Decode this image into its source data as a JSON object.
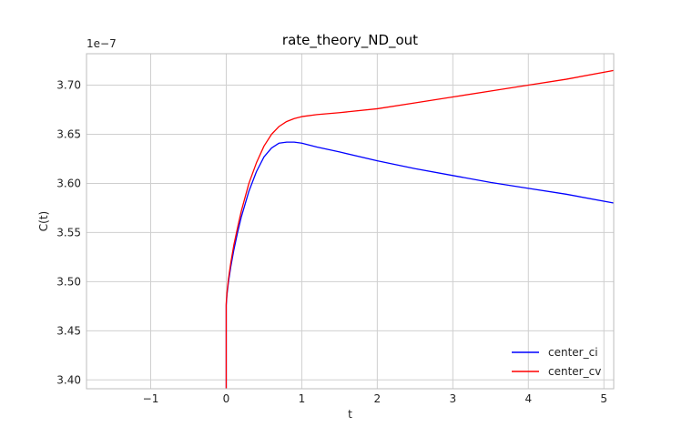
{
  "chart_data": {
    "type": "line",
    "title": "rate_theory_ND_out",
    "xlabel": "t",
    "ylabel": "C(t)",
    "y_offset_label": "1e−7",
    "xlim": [
      -1.85,
      5.13
    ],
    "ylim": [
      3.391,
      3.732
    ],
    "xticks": [
      -1,
      0,
      1,
      2,
      3,
      4,
      5
    ],
    "xtick_labels": [
      "−1",
      "0",
      "1",
      "2",
      "3",
      "4",
      "5"
    ],
    "yticks": [
      3.4,
      3.45,
      3.5,
      3.55,
      3.6,
      3.65,
      3.7
    ],
    "ytick_labels": [
      "3.40",
      "3.45",
      "3.50",
      "3.55",
      "3.60",
      "3.65",
      "3.70"
    ],
    "grid": true,
    "legend_position": "lower-right",
    "series": [
      {
        "name": "center_ci",
        "color": "#0000ff",
        "x": [
          0,
          0,
          0.01,
          0.03,
          0.06,
          0.1,
          0.15,
          0.2,
          0.3,
          0.4,
          0.5,
          0.6,
          0.7,
          0.8,
          0.9,
          1.0,
          1.2,
          1.5,
          2.0,
          2.5,
          3.0,
          3.5,
          4.0,
          4.5,
          5.13
        ],
        "y": [
          3.391,
          3.476,
          3.487,
          3.5,
          3.515,
          3.532,
          3.55,
          3.566,
          3.592,
          3.612,
          3.627,
          3.636,
          3.641,
          3.642,
          3.642,
          3.641,
          3.637,
          3.632,
          3.623,
          3.615,
          3.608,
          3.601,
          3.595,
          3.589,
          3.58
        ]
      },
      {
        "name": "center_cv",
        "color": "#ff0000",
        "x": [
          0,
          0,
          0.01,
          0.03,
          0.06,
          0.1,
          0.15,
          0.2,
          0.3,
          0.4,
          0.5,
          0.6,
          0.7,
          0.8,
          0.9,
          1.0,
          1.2,
          1.5,
          2.0,
          2.5,
          3.0,
          3.5,
          4.0,
          4.5,
          5.13
        ],
        "y": [
          3.391,
          3.478,
          3.489,
          3.503,
          3.519,
          3.537,
          3.555,
          3.572,
          3.6,
          3.621,
          3.638,
          3.65,
          3.658,
          3.663,
          3.666,
          3.668,
          3.67,
          3.672,
          3.676,
          3.682,
          3.688,
          3.694,
          3.7,
          3.706,
          3.715
        ]
      }
    ]
  }
}
